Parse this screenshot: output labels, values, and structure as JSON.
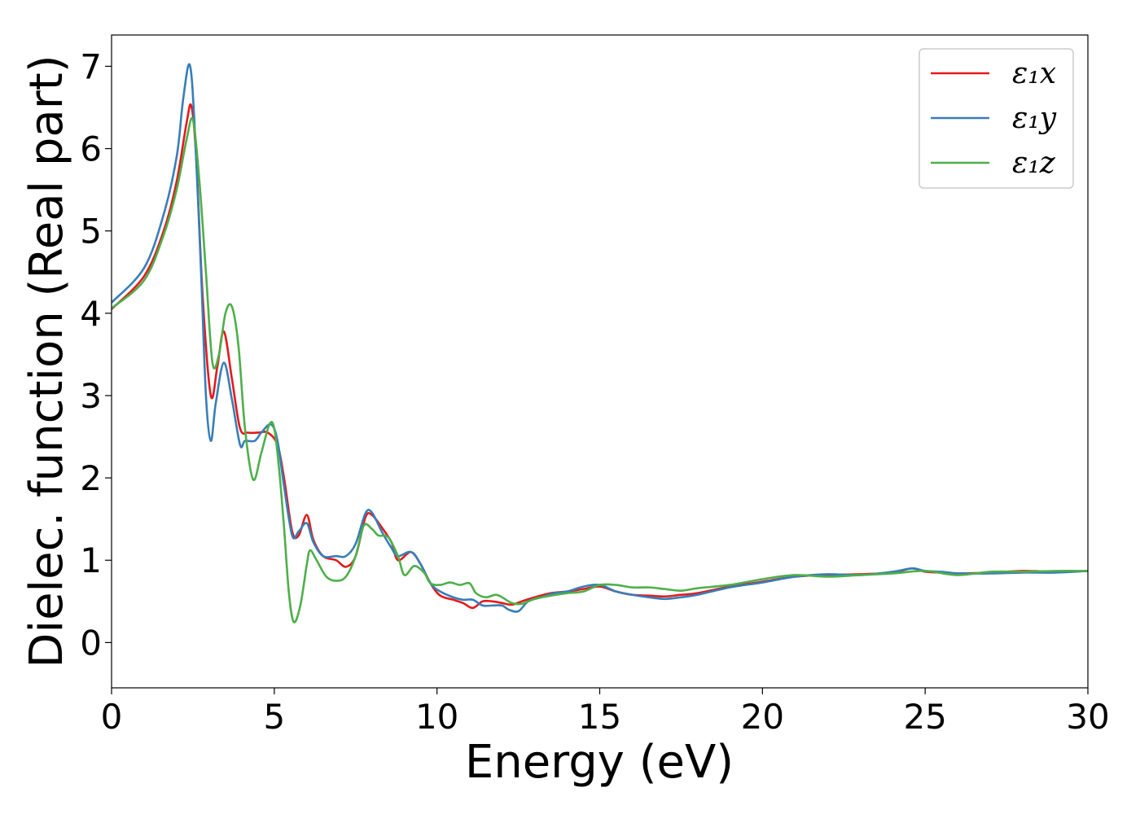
{
  "chart_data": {
    "type": "line",
    "title": "",
    "xlabel": "Energy (eV)",
    "ylabel": "Dielec. function (Real part)",
    "xlim": [
      0,
      30
    ],
    "ylim": [
      -0.55,
      7.38
    ],
    "xticks": [
      0,
      5,
      10,
      15,
      20,
      25,
      30
    ],
    "yticks": [
      0,
      1,
      2,
      3,
      4,
      5,
      6,
      7
    ],
    "grid": false,
    "legend_position": "top-right",
    "series": [
      {
        "name": "ε₁x",
        "color": "#e41a1c",
        "x": [
          0,
          1.0,
          1.6,
          2.0,
          2.3,
          2.45,
          2.6,
          2.8,
          3.05,
          3.25,
          3.45,
          3.7,
          3.95,
          4.2,
          4.5,
          4.8,
          5.1,
          5.3,
          5.55,
          5.75,
          6.0,
          6.2,
          6.5,
          6.9,
          7.2,
          7.5,
          7.8,
          8.0,
          8.3,
          8.6,
          8.8,
          9.2,
          9.5,
          9.8,
          10.1,
          10.5,
          10.8,
          11.1,
          11.4,
          11.7,
          12.0,
          12.3,
          12.6,
          13.0,
          13.5,
          14.0,
          14.5,
          15.0,
          15.5,
          16.0,
          16.5,
          17.0,
          17.5,
          18.0,
          19.0,
          20.0,
          21.0,
          22.0,
          23.0,
          24.0,
          24.6,
          25.0,
          25.5,
          26.0,
          27.0,
          28.0,
          29.0,
          30.0
        ],
        "y": [
          4.05,
          4.45,
          5.0,
          5.6,
          6.3,
          6.52,
          5.9,
          4.2,
          3.0,
          3.35,
          3.78,
          3.2,
          2.6,
          2.55,
          2.55,
          2.55,
          2.4,
          2.0,
          1.35,
          1.3,
          1.55,
          1.25,
          1.05,
          1.0,
          0.92,
          1.05,
          1.52,
          1.55,
          1.4,
          1.22,
          1.0,
          1.1,
          0.95,
          0.72,
          0.57,
          0.52,
          0.48,
          0.42,
          0.5,
          0.5,
          0.48,
          0.46,
          0.5,
          0.55,
          0.6,
          0.62,
          0.65,
          0.68,
          0.62,
          0.58,
          0.57,
          0.56,
          0.58,
          0.6,
          0.68,
          0.74,
          0.8,
          0.82,
          0.83,
          0.85,
          0.9,
          0.86,
          0.85,
          0.84,
          0.85,
          0.87,
          0.86,
          0.87
        ]
      },
      {
        "name": "ε₁y",
        "color": "#377eb8",
        "x": [
          0,
          1.0,
          1.6,
          2.0,
          2.2,
          2.4,
          2.55,
          2.75,
          2.9,
          3.05,
          3.2,
          3.45,
          3.7,
          3.95,
          4.1,
          4.4,
          4.6,
          4.9,
          5.1,
          5.3,
          5.55,
          5.75,
          6.0,
          6.2,
          6.5,
          6.9,
          7.2,
          7.5,
          7.8,
          8.0,
          8.3,
          8.6,
          8.8,
          9.2,
          9.5,
          9.8,
          10.1,
          10.5,
          10.8,
          11.1,
          11.4,
          11.7,
          12.0,
          12.2,
          12.5,
          12.8,
          13.2,
          13.6,
          14.0,
          14.5,
          15.0,
          15.5,
          16.0,
          16.5,
          17.0,
          17.5,
          18.0,
          19.0,
          20.0,
          21.0,
          22.0,
          23.0,
          24.0,
          24.6,
          25.0,
          25.5,
          26.0,
          27.0,
          28.0,
          29.0,
          30.0
        ],
        "y": [
          4.13,
          4.55,
          5.2,
          5.9,
          6.6,
          7.02,
          6.3,
          4.5,
          3.0,
          2.45,
          2.9,
          3.4,
          2.95,
          2.4,
          2.45,
          2.45,
          2.55,
          2.65,
          2.45,
          1.9,
          1.3,
          1.35,
          1.45,
          1.22,
          1.05,
          1.05,
          1.05,
          1.2,
          1.57,
          1.58,
          1.35,
          1.15,
          1.05,
          1.1,
          0.95,
          0.72,
          0.62,
          0.55,
          0.52,
          0.52,
          0.45,
          0.45,
          0.45,
          0.4,
          0.38,
          0.5,
          0.55,
          0.6,
          0.62,
          0.68,
          0.7,
          0.62,
          0.58,
          0.55,
          0.53,
          0.55,
          0.58,
          0.67,
          0.73,
          0.8,
          0.83,
          0.82,
          0.86,
          0.9,
          0.87,
          0.86,
          0.84,
          0.84,
          0.85,
          0.85,
          0.87
        ]
      },
      {
        "name": "ε₁z",
        "color": "#4daf4a",
        "x": [
          0,
          1.0,
          1.6,
          2.0,
          2.3,
          2.5,
          2.7,
          2.9,
          3.1,
          3.3,
          3.5,
          3.7,
          3.9,
          4.1,
          4.35,
          4.6,
          4.85,
          5.0,
          5.15,
          5.3,
          5.45,
          5.6,
          5.8,
          6.0,
          6.1,
          6.3,
          6.6,
          6.9,
          7.2,
          7.5,
          7.75,
          8.0,
          8.2,
          8.5,
          8.8,
          9.0,
          9.3,
          9.6,
          9.8,
          10.1,
          10.4,
          10.7,
          11.0,
          11.2,
          11.5,
          11.8,
          12.0,
          12.3,
          12.6,
          13.0,
          13.5,
          14.0,
          14.5,
          15.0,
          15.5,
          16.0,
          16.5,
          17.0,
          17.5,
          18.0,
          19.0,
          20.0,
          21.0,
          22.0,
          23.0,
          24.0,
          25.0,
          26.0,
          27.0,
          28.0,
          29.0,
          30.0
        ],
        "y": [
          4.06,
          4.4,
          4.95,
          5.5,
          6.1,
          6.35,
          5.6,
          4.5,
          3.4,
          3.5,
          4.0,
          4.08,
          3.6,
          2.6,
          1.98,
          2.3,
          2.65,
          2.6,
          2.1,
          1.4,
          0.6,
          0.25,
          0.45,
          0.95,
          1.12,
          1.0,
          0.8,
          0.75,
          0.8,
          1.05,
          1.42,
          1.38,
          1.3,
          1.28,
          1.05,
          0.82,
          0.93,
          0.85,
          0.72,
          0.7,
          0.73,
          0.7,
          0.72,
          0.6,
          0.55,
          0.58,
          0.55,
          0.48,
          0.47,
          0.53,
          0.57,
          0.6,
          0.62,
          0.7,
          0.7,
          0.67,
          0.67,
          0.65,
          0.63,
          0.66,
          0.7,
          0.77,
          0.82,
          0.8,
          0.82,
          0.84,
          0.87,
          0.82,
          0.86,
          0.86,
          0.87,
          0.87
        ]
      }
    ]
  }
}
